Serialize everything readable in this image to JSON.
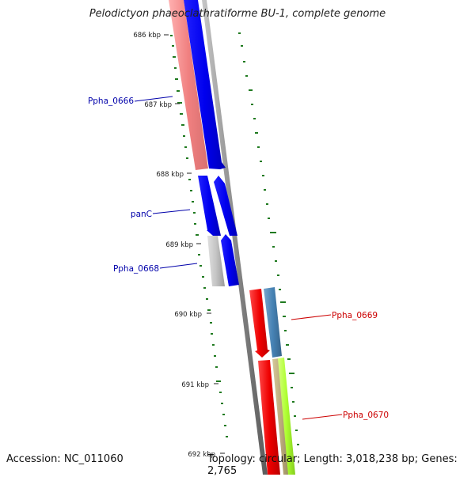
{
  "title": "Pelodictyon phaeoclathratiforme BU-1, complete genome",
  "footer": {
    "accession": "Accession: NC_011060",
    "summary": "Topology: circular; Length: 3,018,238 bp; Genes: 2,765"
  },
  "ruler_labels": [
    "686 kbp",
    "687 kbp",
    "688 kbp",
    "689 kbp",
    "690 kbp",
    "691 kbp",
    "692 kbp"
  ],
  "gene_labels": [
    {
      "text": "Ppha_0666",
      "color": "#0000aa"
    },
    {
      "text": "panC",
      "color": "#0000aa"
    },
    {
      "text": "Ppha_0668",
      "color": "#0000aa"
    },
    {
      "text": "Ppha_0669",
      "color": "#cc0000"
    },
    {
      "text": "Ppha_0670",
      "color": "#cc0000"
    }
  ],
  "colors": {
    "backbone": "#8a8a8a",
    "gc_skew": "#1f7a1f",
    "blue_gene": "#0000ee",
    "salmon_gene": "#f08a8a",
    "gray_gene": "#bdbdbd",
    "red_gene": "#ee0000",
    "steelblue_gene": "#4682b4",
    "tan_gene": "#b8a878",
    "lime_gene": "#adff2f"
  }
}
